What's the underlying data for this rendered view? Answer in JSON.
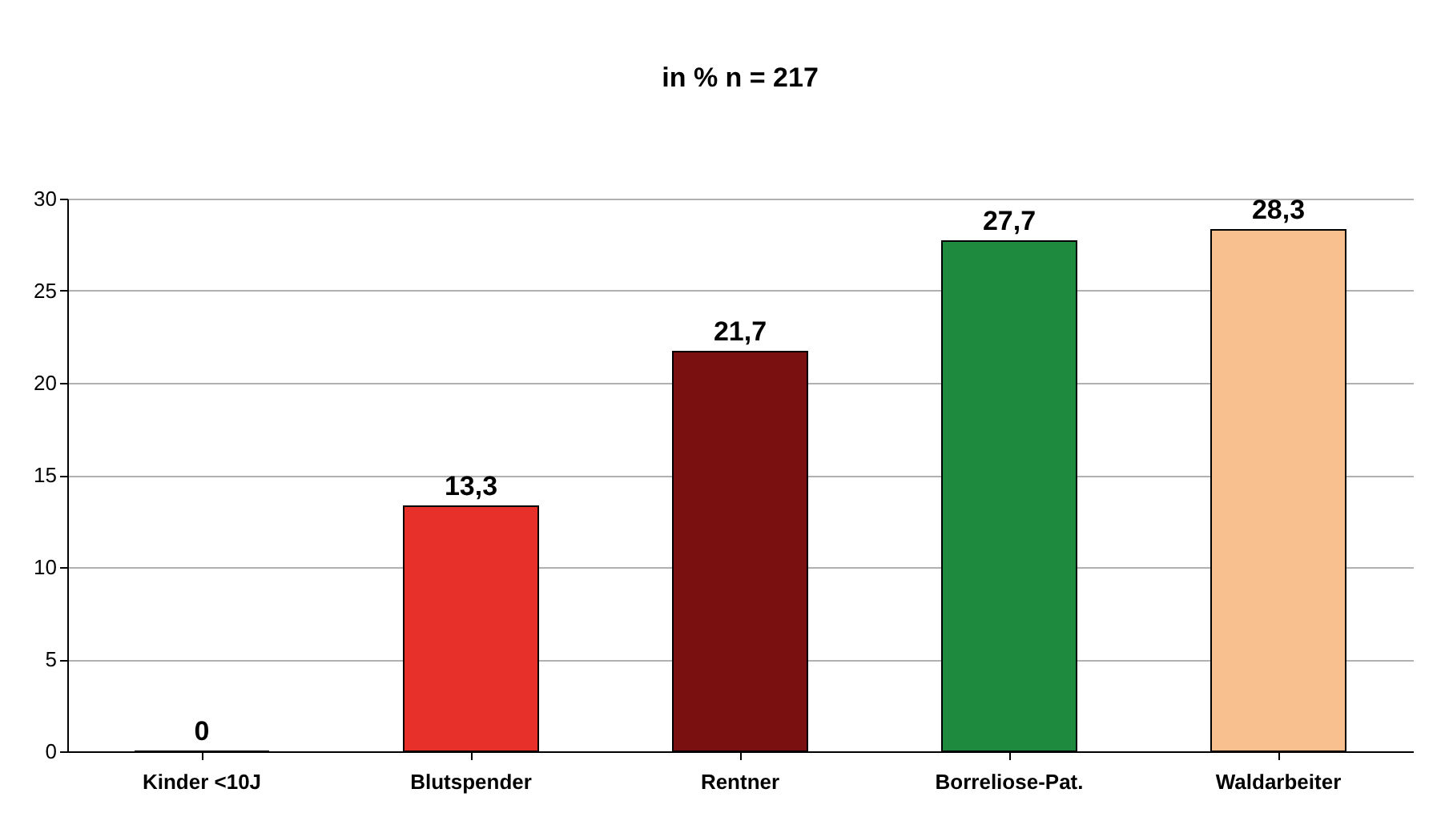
{
  "chart_data": {
    "type": "bar",
    "title": "in % n = 217",
    "categories": [
      "Kinder <10J",
      "Blutspender",
      "Rentner",
      "Borreliose-Pat.",
      "Waldarbeiter"
    ],
    "values": [
      0,
      13.3,
      21.7,
      27.7,
      28.3
    ],
    "colors": [
      "#3366cc",
      "#e8302a",
      "#7a1010",
      "#1e8a3e",
      "#f9c08f"
    ],
    "value_labels": [
      "0",
      "13,3",
      "21,7",
      "27,7",
      "28,3"
    ],
    "ylim": [
      0,
      30
    ],
    "yticks": [
      0,
      5,
      10,
      15,
      20,
      25,
      30
    ],
    "grid": "y",
    "legend": false
  }
}
